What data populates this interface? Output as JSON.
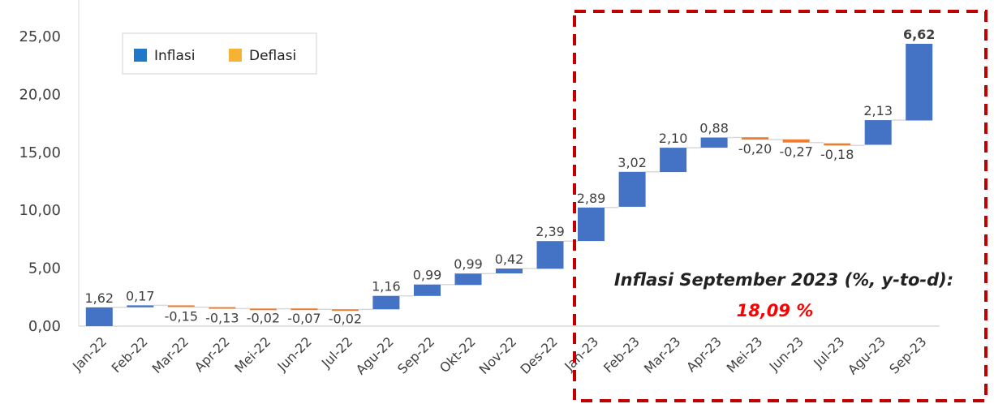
{
  "chart_data": {
    "type": "bar",
    "subtype": "waterfall",
    "categories": [
      "Jan-22",
      "Feb-22",
      "Mar-22",
      "Apr-22",
      "Mei-22",
      "Jun-22",
      "Jul-22",
      "Agu-22",
      "Sep-22",
      "Okt-22",
      "Nov-22",
      "Des-22",
      "Jan-23",
      "Feb-23",
      "Mar-23",
      "Apr-23",
      "Mei-23",
      "Jun-23",
      "Jul-23",
      "Agu-23",
      "Sep-23"
    ],
    "values": [
      1.62,
      0.17,
      -0.15,
      -0.13,
      -0.02,
      -0.07,
      -0.02,
      1.16,
      0.99,
      0.99,
      0.42,
      2.39,
      2.89,
      3.02,
      2.1,
      0.88,
      -0.2,
      -0.27,
      -0.18,
      2.13,
      6.62
    ],
    "value_labels": [
      "1,62",
      "0,17",
      "-0,15",
      "-0,13",
      "-0,02",
      "-0,07",
      "-0,02",
      "1,16",
      "0,99",
      "0,99",
      "0,42",
      "2,39",
      "2,89",
      "3,02",
      "2,10",
      "0,88",
      "-0,20",
      "-0,27",
      "-0,18",
      "2,13",
      "6,62"
    ],
    "bar_bottoms": [
      0,
      1.62,
      1.64,
      1.51,
      1.5,
      1.46,
      1.44,
      1.45,
      2.6,
      3.55,
      4.55,
      4.95,
      7.35,
      10.3,
      13.3,
      15.4,
      16.1,
      15.85,
      15.6,
      15.65,
      17.75
    ],
    "bar_tops": [
      1.62,
      1.79,
      1.79,
      1.64,
      1.52,
      1.53,
      1.46,
      2.61,
      3.59,
      4.54,
      4.97,
      7.34,
      10.24,
      13.32,
      15.4,
      16.28,
      16.3,
      16.12,
      15.78,
      17.78,
      24.37
    ],
    "ylim": [
      0,
      27
    ],
    "yticks": [
      0,
      5,
      10,
      15,
      20,
      25
    ],
    "ytick_labels": [
      "0,00",
      "5,00",
      "10,00",
      "15,00",
      "20,00",
      "25,00"
    ],
    "title": "",
    "xlabel": "",
    "ylabel": "",
    "grid": false,
    "legend": {
      "placement": "top-left",
      "entries": [
        {
          "name": "Inflasi",
          "color": "#4472c4"
        },
        {
          "name": "Deflasi",
          "color": "#f5a623"
        }
      ]
    },
    "colors": {
      "increase": "#4472c4",
      "decrease": "#ed7d31",
      "connector": "#d9d9d9",
      "highlight_box": "#c00000"
    },
    "highlight": {
      "from": "Jan-23",
      "to": "Sep-23",
      "style": "dashed-box"
    },
    "annotation": {
      "line1": "Inflasi September 2023 (%, y-to-d):",
      "line2": "18,09 %"
    }
  }
}
